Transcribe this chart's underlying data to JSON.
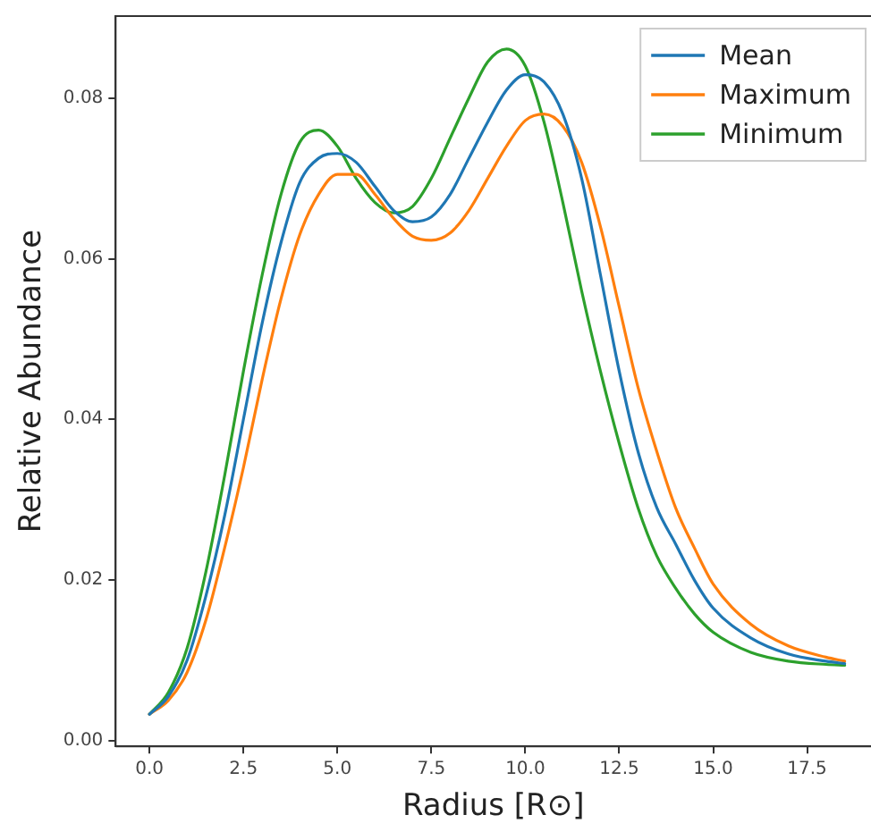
{
  "chart_data": {
    "type": "line",
    "xlabel": "Radius [R⊙]",
    "ylabel": "Relative Abundance",
    "xlim": [
      -0.9,
      19.2
    ],
    "ylim": [
      -0.0007,
      0.0902
    ],
    "xticks": [
      {
        "value": 0,
        "label": "0.0"
      },
      {
        "value": 2.5,
        "label": "2.5"
      },
      {
        "value": 5,
        "label": "5.0"
      },
      {
        "value": 7.5,
        "label": "7.5"
      },
      {
        "value": 10,
        "label": "10.0"
      },
      {
        "value": 12.5,
        "label": "12.5"
      },
      {
        "value": 15,
        "label": "15.0"
      },
      {
        "value": 17.5,
        "label": "17.5"
      }
    ],
    "yticks": [
      {
        "value": 0,
        "label": "0.00"
      },
      {
        "value": 0.02,
        "label": "0.02"
      },
      {
        "value": 0.04,
        "label": "0.04"
      },
      {
        "value": 0.06,
        "label": "0.06"
      },
      {
        "value": 0.08,
        "label": "0.08"
      }
    ],
    "x": [
      0,
      0.5,
      1,
      1.5,
      2,
      2.5,
      3,
      3.5,
      4,
      4.5,
      5,
      5.5,
      6,
      6.5,
      7,
      7.5,
      8,
      8.5,
      9,
      9.5,
      10,
      10.5,
      11,
      11.5,
      12,
      12.5,
      13,
      13.5,
      14,
      14.5,
      15,
      16,
      17,
      18,
      18.5
    ],
    "grid": false,
    "legend": "top right",
    "marker": "none",
    "line_style": "solid",
    "series": [
      {
        "name": "Mean",
        "color": "#1f77b4",
        "values": [
          0.0033,
          0.0055,
          0.01,
          0.018,
          0.028,
          0.04,
          0.052,
          0.062,
          0.0695,
          0.0725,
          0.0731,
          0.072,
          0.069,
          0.066,
          0.0646,
          0.0652,
          0.068,
          0.0725,
          0.077,
          0.081,
          0.0829,
          0.082,
          0.078,
          0.07,
          0.058,
          0.046,
          0.036,
          0.029,
          0.0245,
          0.02,
          0.0165,
          0.0128,
          0.0108,
          0.0099,
          0.0096
        ]
      },
      {
        "name": "Maximum",
        "color": "#ff7f0e",
        "values": [
          0.0033,
          0.005,
          0.0085,
          0.015,
          0.024,
          0.034,
          0.045,
          0.055,
          0.063,
          0.068,
          0.0705,
          0.0705,
          0.068,
          0.065,
          0.0628,
          0.0623,
          0.0632,
          0.066,
          0.07,
          0.074,
          0.0772,
          0.078,
          0.0765,
          0.072,
          0.064,
          0.054,
          0.044,
          0.036,
          0.029,
          0.024,
          0.0195,
          0.0145,
          0.0118,
          0.0104,
          0.0099
        ]
      },
      {
        "name": "Minimum",
        "color": "#2ca02c",
        "values": [
          0.0033,
          0.006,
          0.0115,
          0.021,
          0.033,
          0.046,
          0.058,
          0.068,
          0.0745,
          0.076,
          0.074,
          0.07,
          0.067,
          0.0657,
          0.0665,
          0.07,
          0.075,
          0.08,
          0.0845,
          0.0861,
          0.084,
          0.077,
          0.067,
          0.056,
          0.046,
          0.037,
          0.029,
          0.023,
          0.019,
          0.0158,
          0.0135,
          0.011,
          0.0099,
          0.0095,
          0.0094
        ]
      }
    ]
  }
}
